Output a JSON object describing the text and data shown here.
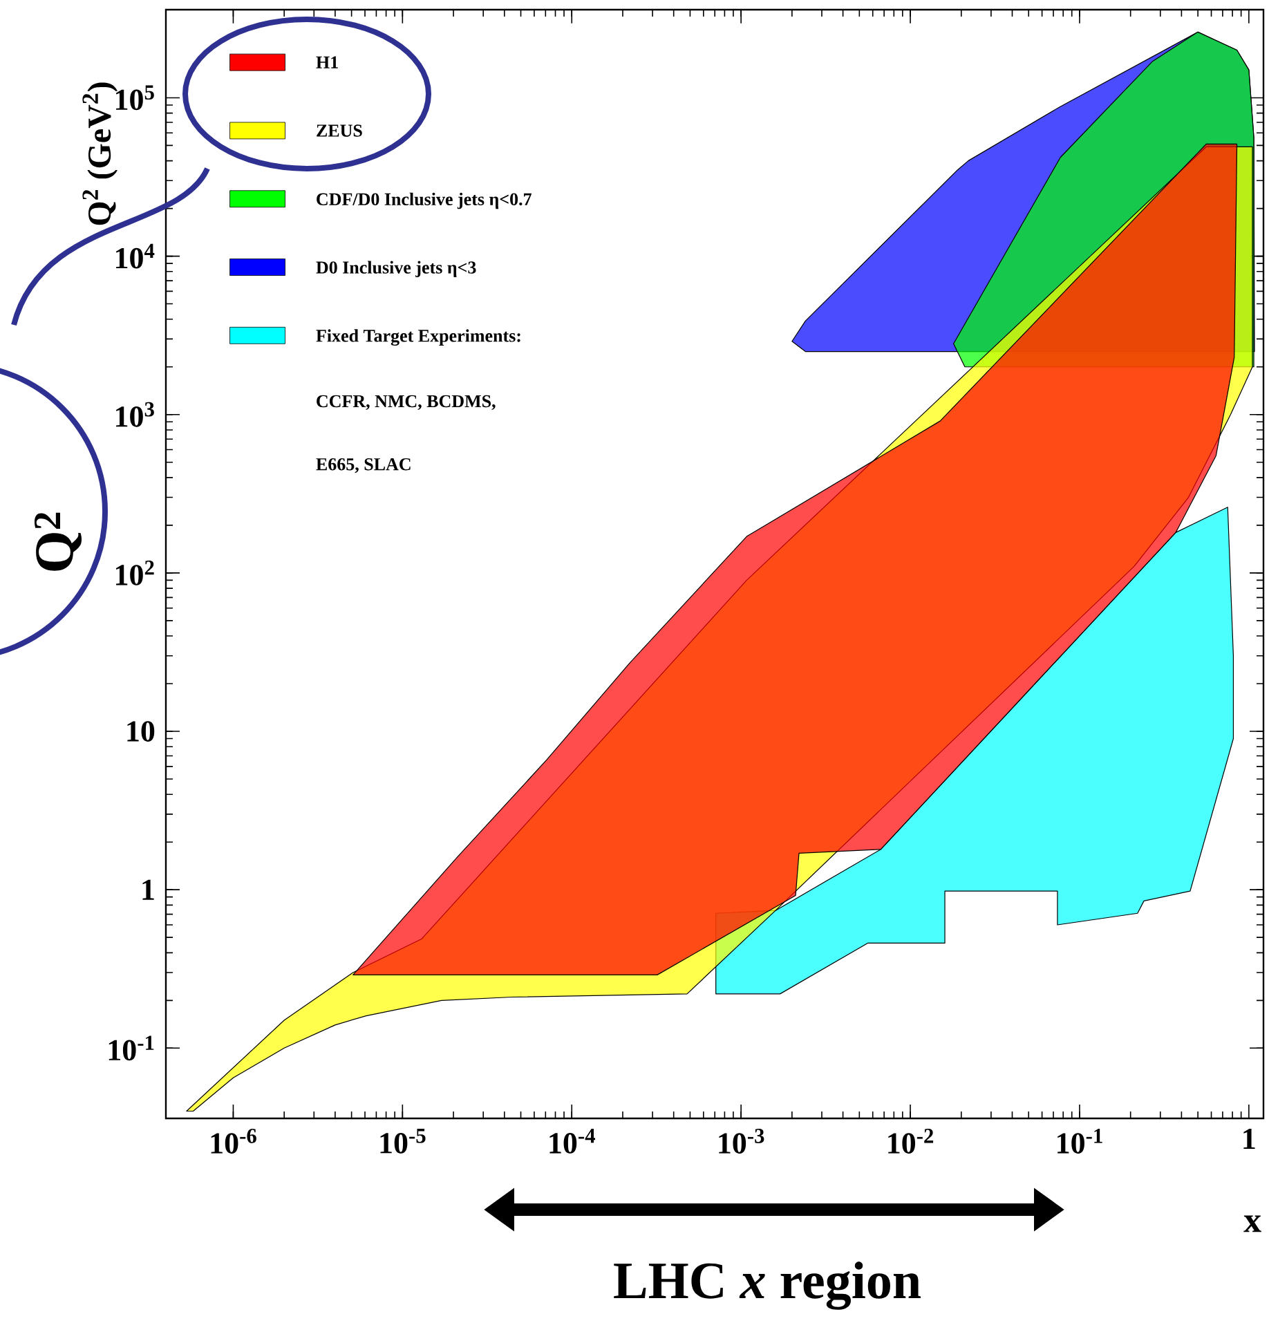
{
  "chart_data": {
    "type": "area",
    "xlabel": "x",
    "ylabel": "Q$^{2}$ (GeV$^{2}$)",
    "annotations": [
      "CCFR, NMC, BCDMS,",
      "E665, SLAC",
      "Q$^{2}$",
      "LHC *x* region"
    ],
    "log": "xy",
    "grid": false,
    "legend": "top left",
    "marker": "none",
    "line_style": "solid",
    "xlim": [
      4e-07,
      1.22
    ],
    "ylim": [
      0.036,
      360000
    ],
    "xticks": [
      {
        "value": 1e-06,
        "label": "10$^{-6}$"
      },
      {
        "value": 1e-05,
        "label": "10$^{-5}$"
      },
      {
        "value": 0.0001,
        "label": "10$^{-4}$"
      },
      {
        "value": 0.001,
        "label": "10$^{-3}$"
      },
      {
        "value": 0.01,
        "label": "10$^{-2}$"
      },
      {
        "value": 0.1,
        "label": "10$^{-1}$"
      },
      1
    ],
    "yticks": [
      {
        "value": 0.1,
        "label": "10$^{-1}$"
      },
      1,
      10,
      {
        "value": 100,
        "label": "10$^{2}$"
      },
      {
        "value": 1000,
        "label": "10$^{3}$"
      },
      {
        "value": 10000,
        "label": "10$^{4}$"
      },
      {
        "value": 100000,
        "label": "10$^{5}$"
      }
    ],
    "series": [
      {
        "name": "H1",
        "color": "#ff0000",
        "x": [
          5.1e-06,
          1.5e-05,
          0.00032,
          0.0021,
          0.0022,
          0.0067,
          0.37,
          0.64,
          0.82,
          0.85,
          0.56,
          0.015,
          0.00108,
          0.00022,
          7.1e-05,
          2.1e-05
        ],
        "values": [
          0.29,
          0.29,
          0.29,
          0.92,
          1.7,
          1.8,
          180,
          550,
          2300,
          51000,
          51000,
          910,
          170,
          27,
          6.6,
          1.6
        ]
      },
      {
        "name": "ZEUS",
        "color": "#ffff00",
        "x": [
          5.3e-07,
          2e-06,
          5.1e-06,
          1.3e-05,
          0.00108,
          0.56,
          1.05,
          1.05,
          0.78,
          0.44,
          0.21,
          0.0016,
          0.00048,
          4.4e-05,
          1.7e-05,
          6.1e-06,
          4e-06,
          2e-06,
          1e-06,
          5.8e-07
        ],
        "values": [
          0.04,
          0.15,
          0.3,
          0.49,
          90,
          49000,
          49000,
          2000,
          1000,
          300,
          110,
          0.74,
          0.22,
          0.21,
          0.2,
          0.16,
          0.14,
          0.1,
          0.065,
          0.04
        ]
      },
      {
        "name": "CDF/D0   Inclusive jets η<0.7",
        "color": "#00ff00",
        "x": [
          0.021,
          0.018,
          0.077,
          0.27,
          0.5,
          0.85,
          1.0,
          1.07,
          1.07
        ],
        "values": [
          2000,
          2800,
          42000,
          170000,
          260000,
          200000,
          150000,
          56000,
          2000
        ]
      },
      {
        "name": "D0  Inclusive jets η<3",
        "color": "#0000ff",
        "x": [
          0.002,
          0.0024,
          0.019,
          0.022,
          0.077,
          0.5,
          0.85,
          1.0,
          1.07,
          1.08,
          0.0024
        ],
        "values": [
          2900,
          3900,
          35000,
          40000,
          88000,
          260000,
          200000,
          150000,
          56000,
          2500,
          2500
        ]
      },
      {
        "name": "Fixed Target Experiments:",
        "color": "#00ffff",
        "x": [
          0.00071,
          0.0016,
          0.0067,
          0.37,
          0.75,
          0.81,
          0.81,
          0.45,
          0.24,
          0.22,
          0.074,
          0.074,
          0.016,
          0.016,
          0.0056,
          0.0017,
          0.00071
        ],
        "values": [
          0.71,
          0.74,
          1.8,
          180,
          260,
          30,
          9.0,
          0.98,
          0.85,
          0.71,
          0.6,
          0.98,
          0.98,
          0.46,
          0.46,
          0.22,
          0.22
        ]
      }
    ]
  }
}
